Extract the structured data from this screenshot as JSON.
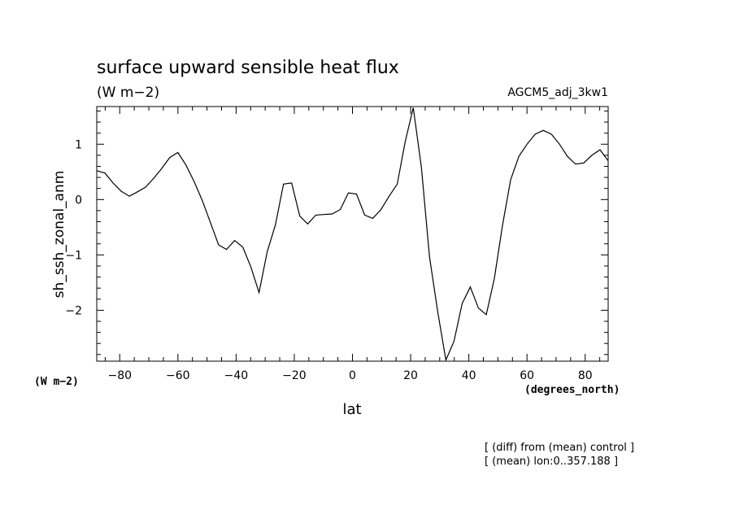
{
  "chart_data": {
    "type": "line",
    "title": "surface upward sensible heat flux",
    "units": "(W m−2)",
    "experiment": "AGCM5_adj_3kw1",
    "ylabel": "sh_ssh_zonal_anm",
    "yunits": "(W m−2)",
    "xlabel": "lat",
    "xunits": "(degrees_north)",
    "notes": [
      "[ (diff) from (mean) control ]",
      "[ (mean) lon:0..357.188 ]"
    ],
    "xlim": [
      -87.9,
      87.9
    ],
    "ylim": [
      -2.92,
      1.68
    ],
    "xticks": [
      -80,
      -60,
      -40,
      -20,
      0,
      20,
      40,
      60,
      80
    ],
    "xtick_labels": [
      "−80",
      "−60",
      "−40",
      "−20",
      "0",
      "20",
      "40",
      "60",
      "80"
    ],
    "yticks": [
      -2,
      -1,
      0,
      1
    ],
    "ytick_labels": [
      "−2",
      "−1",
      "0",
      "1"
    ],
    "series": [
      {
        "x": [
          -87.9,
          -85.1,
          -82.3,
          -79.5,
          -76.7,
          -73.9,
          -71.2,
          -68.4,
          -65.6,
          -62.8,
          -60.0,
          -57.2,
          -54.4,
          -51.6,
          -48.8,
          -46.0,
          -43.3,
          -40.5,
          -37.7,
          -34.9,
          -32.1,
          -29.3,
          -26.5,
          -23.7,
          -20.9,
          -18.1,
          -15.4,
          -12.6,
          -9.8,
          -7.0,
          -4.2,
          -1.4,
          1.4,
          4.2,
          7.0,
          9.8,
          12.6,
          15.4,
          18.1,
          20.9,
          23.7,
          26.5,
          29.3,
          32.1,
          34.9,
          37.7,
          40.5,
          43.3,
          46.0,
          48.8,
          51.6,
          54.4,
          57.2,
          60.0,
          62.8,
          65.6,
          68.4,
          71.2,
          73.9,
          76.7,
          79.5,
          82.3,
          85.1,
          87.9
        ],
        "y": [
          0.52,
          0.48,
          0.3,
          0.15,
          0.06,
          0.14,
          0.22,
          0.38,
          0.56,
          0.76,
          0.85,
          0.62,
          0.32,
          -0.02,
          -0.42,
          -0.82,
          -0.9,
          -0.74,
          -0.86,
          -1.22,
          -1.68,
          -0.94,
          -0.46,
          0.28,
          0.3,
          -0.3,
          -0.44,
          -0.28,
          -0.27,
          -0.26,
          -0.18,
          0.12,
          0.1,
          -0.28,
          -0.34,
          -0.18,
          0.06,
          0.28,
          1.04,
          1.66,
          0.58,
          -1.04,
          -2.02,
          -2.9,
          -2.56,
          -1.88,
          -1.58,
          -1.96,
          -2.08,
          -1.42,
          -0.46,
          0.36,
          0.78,
          1.0,
          1.18,
          1.25,
          1.18,
          1.0,
          0.78,
          0.64,
          0.66,
          0.8,
          0.9,
          0.7
        ]
      }
    ]
  }
}
